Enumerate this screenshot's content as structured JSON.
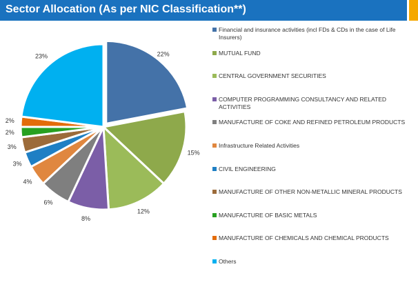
{
  "chart_data": {
    "type": "pie",
    "title": "Sector Allocation (As per NIC Classification**)",
    "categories": [
      "Financial and insurance activities (incl FDs & CDs in the case of Life Insurers)",
      "MUTUAL FUND",
      "CENTRAL GOVERNMENT SECURITIES",
      "COMPUTER PROGRAMMING  CONSULTANCY AND RELATED ACTIVITIES",
      "MANUFACTURE OF COKE AND REFINED PETROLEUM PRODUCTS",
      "Infrastructure Related Activities",
      "CIVIL ENGINEERING",
      "MANUFACTURE OF OTHER NON-METALLIC MINERAL PRODUCTS",
      "MANUFACTURE OF BASIC METALS",
      "MANUFACTURE OF CHEMICALS AND CHEMICAL PRODUCTS",
      "Others"
    ],
    "values": [
      22,
      15,
      12,
      8,
      6,
      4,
      3,
      3,
      2,
      2,
      23
    ],
    "value_labels": [
      "22%",
      "15%",
      "12%",
      "8%",
      "6%",
      "4%",
      "3%",
      "3%",
      "2%",
      "2%",
      "23%"
    ],
    "colors": [
      "#4472a8",
      "#8ea94b",
      "#9bbb59",
      "#7b5ea7",
      "#7f7f7f",
      "#e0873f",
      "#1f7fc4",
      "#9c6b3a",
      "#27a020",
      "#e36c0a",
      "#00b0f0"
    ],
    "legend": "right"
  }
}
